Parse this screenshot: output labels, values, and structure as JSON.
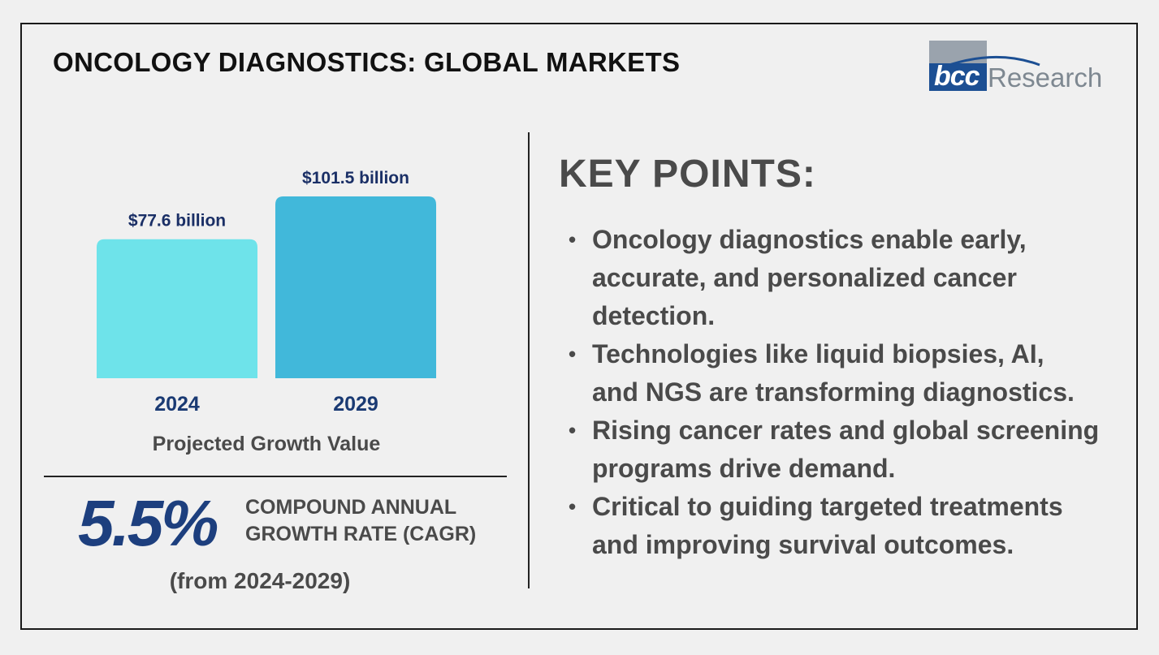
{
  "header": {
    "title": "ONCOLOGY DIAGNOSTICS: GLOBAL MARKETS",
    "logo": {
      "part1": "bcc",
      "part2": "Research"
    }
  },
  "chart_data": {
    "type": "bar",
    "categories": [
      "2024",
      "2029"
    ],
    "values": [
      77.6,
      101.5
    ],
    "value_labels": [
      "$77.6 billion",
      "$101.5 billion"
    ],
    "bar_colors": [
      "#6ee3ea",
      "#41b8da"
    ],
    "xlabel": "Projected Growth Value",
    "ylabel": "",
    "ylim": [
      0,
      101.5
    ]
  },
  "cagr": {
    "value": "5.5%",
    "label_line1": "COMPOUND ANNUAL",
    "label_line2": "GROWTH RATE (CAGR)",
    "period": "(from 2024-2029)"
  },
  "key_points": {
    "title": "KEY POINTS:",
    "items": [
      {
        "line1": "Oncology diagnostics enable early,",
        "line2": "accurate, and personalized cancer",
        "line3": "detection."
      },
      {
        "line1": "Technologies like liquid biopsies, AI,",
        "line2": "and NGS are transforming diagnostics.",
        "line3": ""
      },
      {
        "line1": "Rising cancer rates and global screening",
        "line2": "programs drive demand.",
        "line3": ""
      },
      {
        "line1": "Critical to guiding targeted treatments",
        "line2": "and improving survival outcomes.",
        "line3": ""
      }
    ]
  },
  "colors": {
    "accent_navy": "#1d3f7e",
    "text_gray": "#4a4a4a",
    "logo_blue": "#1c4f93",
    "logo_gray": "#9aa3ad"
  }
}
